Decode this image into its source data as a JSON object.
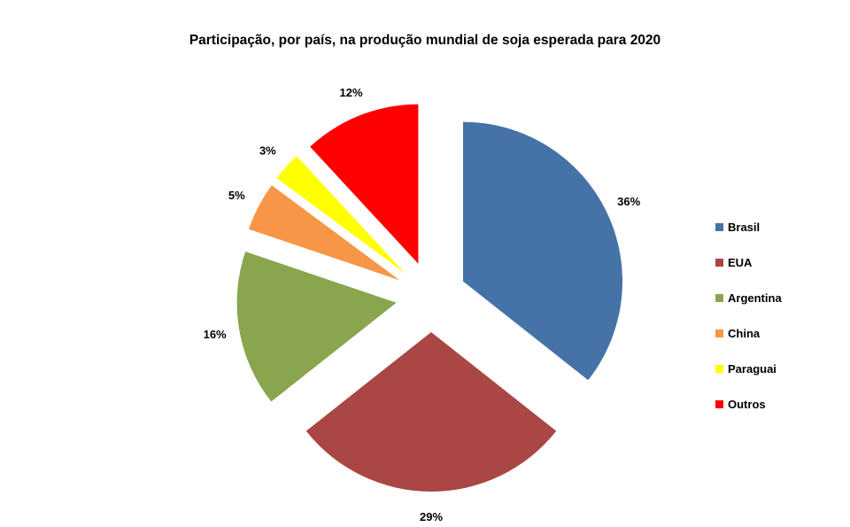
{
  "chart_data": {
    "type": "pie",
    "title": "Participação, por país, na produção mundial de soja esperada para 2020",
    "categories": [
      "Brasil",
      "EUA",
      "Argentina",
      "China",
      "Paraguai",
      "Outros"
    ],
    "values": [
      36,
      29,
      16,
      5,
      3,
      12
    ],
    "labels": [
      "36%",
      "29%",
      "16%",
      "5%",
      "3%",
      "12%"
    ],
    "colors": [
      "#4572A7",
      "#AA4643",
      "#89A54E",
      "#F79646",
      "#FFFF00",
      "#FF0000"
    ],
    "exploded": true,
    "legend_position": "right"
  }
}
